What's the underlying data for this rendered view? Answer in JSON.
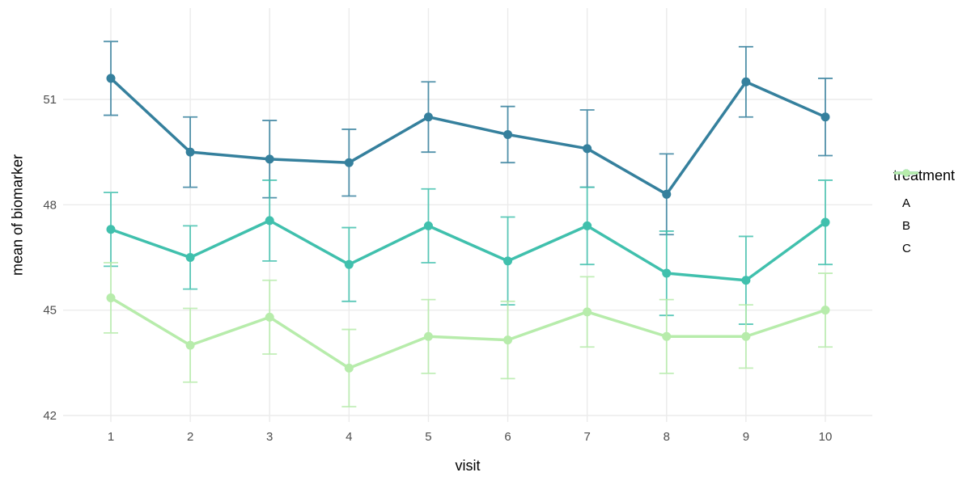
{
  "chart_data": {
    "type": "line",
    "title": "",
    "xlabel": "visit",
    "ylabel": "mean of biomarker",
    "x": [
      1,
      2,
      3,
      4,
      5,
      6,
      7,
      8,
      9,
      10
    ],
    "xticks": [
      "1",
      "2",
      "3",
      "4",
      "5",
      "6",
      "7",
      "8",
      "9",
      "10"
    ],
    "yticks": [
      "42",
      "45",
      "48",
      "51"
    ],
    "xlim": [
      0.4,
      10.6
    ],
    "ylim": [
      41.8,
      53.6
    ],
    "grid": true,
    "error_bars": true,
    "legend": {
      "title": "treatment",
      "position": "right"
    },
    "series": [
      {
        "name": "A",
        "color": "#35809d",
        "values": [
          51.6,
          49.5,
          49.3,
          49.2,
          50.5,
          50.0,
          49.6,
          48.3,
          51.5,
          50.5
        ],
        "errors": [
          1.05,
          1.0,
          1.1,
          0.95,
          1.0,
          0.8,
          1.1,
          1.15,
          1.0,
          1.1
        ]
      },
      {
        "name": "B",
        "color": "#40c0ad",
        "values": [
          47.3,
          46.5,
          47.55,
          46.3,
          47.4,
          46.4,
          47.4,
          46.05,
          45.85,
          47.5
        ],
        "errors": [
          1.05,
          0.9,
          1.15,
          1.05,
          1.05,
          1.25,
          1.1,
          1.2,
          1.25,
          1.2
        ]
      },
      {
        "name": "C",
        "color": "#b7ecab",
        "values": [
          45.35,
          44.0,
          44.8,
          43.35,
          44.25,
          44.15,
          44.95,
          44.25,
          44.25,
          45.0
        ],
        "errors": [
          1.0,
          1.05,
          1.05,
          1.1,
          1.05,
          1.1,
          1.0,
          1.05,
          0.9,
          1.05
        ]
      }
    ],
    "style": {
      "background": "#ffffff",
      "grid_color": "#ebebeb",
      "tick_label_color": "#4d4d4d",
      "axis_title_color": "#000000"
    }
  }
}
